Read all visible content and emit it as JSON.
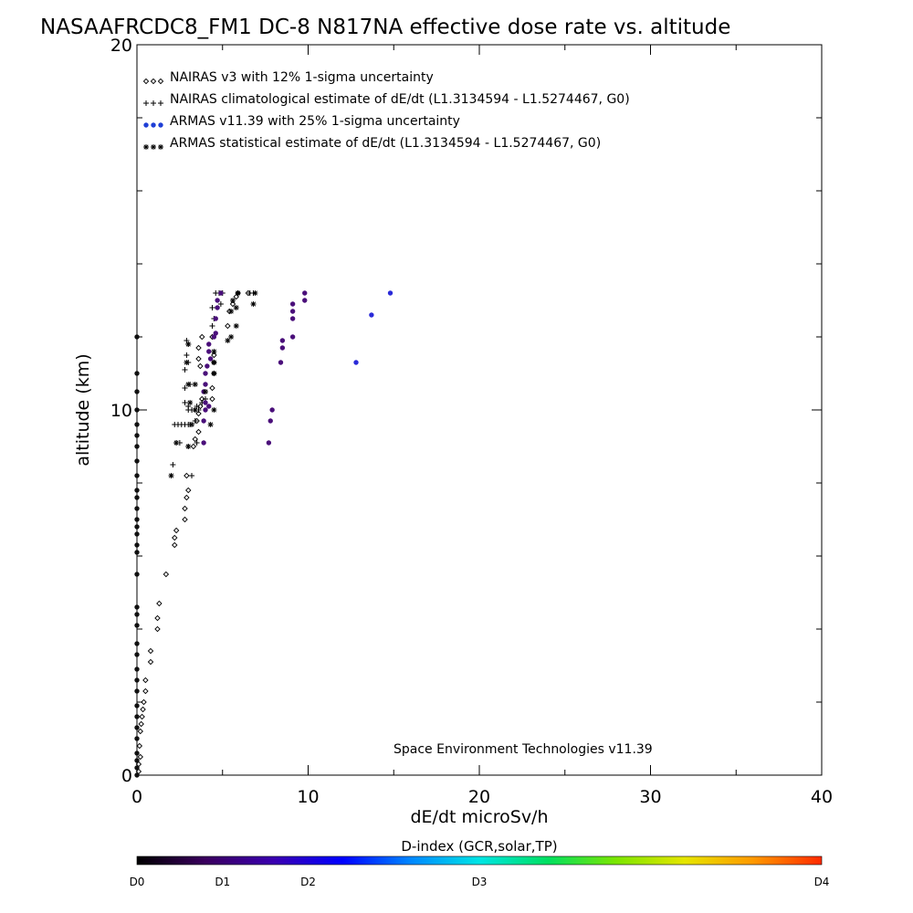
{
  "chart_data": {
    "type": "scatter",
    "title": "NASAAFRCDC8_FM1 DC-8   N817NA effective dose rate vs. altitude",
    "xlabel": "dE/dt microSv/h",
    "ylabel": "altitude (km)",
    "xlim": [
      0,
      40
    ],
    "ylim": [
      0,
      20
    ],
    "xticks": [
      0,
      10,
      20,
      30,
      40
    ],
    "yticks": [
      0,
      10,
      20
    ],
    "x_tick_labels": [
      "0",
      "10",
      "20",
      "30",
      "40"
    ],
    "y_tick_labels": [
      "0",
      "10",
      "20"
    ],
    "grid": false,
    "legend_position": "top-left",
    "annotation": "Space Environment Technologies v11.39",
    "series": [
      {
        "name": "NAIRAS v3 with 12% 1-sigma uncertainty",
        "marker": "diamond",
        "color": "#000000",
        "points": [
          [
            0.1,
            0.1
          ],
          [
            0.1,
            0.3
          ],
          [
            0.2,
            0.5
          ],
          [
            0.15,
            0.8
          ],
          [
            0.2,
            1.2
          ],
          [
            0.25,
            1.4
          ],
          [
            0.3,
            1.6
          ],
          [
            0.35,
            1.8
          ],
          [
            0.4,
            2.0
          ],
          [
            0.5,
            2.3
          ],
          [
            0.5,
            2.6
          ],
          [
            0.8,
            3.1
          ],
          [
            0.8,
            3.4
          ],
          [
            1.2,
            4.0
          ],
          [
            1.2,
            4.3
          ],
          [
            1.3,
            4.7
          ],
          [
            1.7,
            5.5
          ],
          [
            2.2,
            6.3
          ],
          [
            2.2,
            6.5
          ],
          [
            2.3,
            6.7
          ],
          [
            2.8,
            7.0
          ],
          [
            2.8,
            7.3
          ],
          [
            2.9,
            7.6
          ],
          [
            3.0,
            7.8
          ],
          [
            2.9,
            8.2
          ],
          [
            3.3,
            9.0
          ],
          [
            3.4,
            9.2
          ],
          [
            3.6,
            9.4
          ],
          [
            3.5,
            9.7
          ],
          [
            3.6,
            9.9
          ],
          [
            3.7,
            10.1
          ],
          [
            3.8,
            10.3
          ],
          [
            4.4,
            10.3
          ],
          [
            4.4,
            10.6
          ],
          [
            4.5,
            11.0
          ],
          [
            4.5,
            11.3
          ],
          [
            4.5,
            11.5
          ],
          [
            3.6,
            11.7
          ],
          [
            3.8,
            12.0
          ],
          [
            3.7,
            11.2
          ],
          [
            3.6,
            11.4
          ],
          [
            4.4,
            12.0
          ],
          [
            5.3,
            12.3
          ],
          [
            5.4,
            12.7
          ],
          [
            5.6,
            12.9
          ],
          [
            5.8,
            13.1
          ],
          [
            5.9,
            13.2
          ],
          [
            6.5,
            13.2
          ]
        ]
      },
      {
        "name": "NAIRAS climatological estimate of dE/dt (L1.3134594 - L1.5274467, G0)",
        "marker": "plus",
        "color": "#000000",
        "points": [
          [
            2.0,
            8.2
          ],
          [
            2.1,
            8.5
          ],
          [
            2.3,
            9.1
          ],
          [
            2.5,
            9.1
          ],
          [
            3.2,
            8.2
          ],
          [
            3.0,
            9.0
          ],
          [
            3.5,
            9.1
          ],
          [
            3.2,
            9.6
          ],
          [
            3.4,
            9.7
          ],
          [
            3.0,
            10.0
          ],
          [
            3.2,
            10.0
          ],
          [
            3.4,
            10.0
          ],
          [
            3.6,
            10.0
          ],
          [
            2.8,
            10.2
          ],
          [
            3.0,
            10.1
          ],
          [
            3.5,
            10.1
          ],
          [
            3.8,
            10.2
          ],
          [
            4.0,
            10.3
          ],
          [
            2.8,
            10.6
          ],
          [
            3.1,
            10.7
          ],
          [
            2.8,
            11.1
          ],
          [
            3.0,
            11.3
          ],
          [
            2.9,
            11.5
          ],
          [
            3.0,
            11.8
          ],
          [
            2.9,
            11.9
          ],
          [
            4.4,
            12.3
          ],
          [
            4.5,
            12.5
          ],
          [
            4.4,
            12.8
          ],
          [
            4.9,
            12.9
          ],
          [
            4.6,
            13.2
          ],
          [
            4.8,
            13.2
          ],
          [
            5.0,
            13.2
          ],
          [
            6.6,
            13.2
          ],
          [
            6.8,
            13.2
          ],
          [
            2.2,
            9.6
          ],
          [
            2.4,
            9.6
          ],
          [
            2.6,
            9.6
          ],
          [
            2.8,
            9.6
          ],
          [
            3.0,
            9.6
          ],
          [
            3.1,
            9.6
          ]
        ]
      },
      {
        "name": "ARMAS v11.39 with 25% 1-sigma uncertainty",
        "marker": "circle",
        "color": "#1f3fd6",
        "points": [
          [
            0.0,
            0.0
          ],
          [
            0.0,
            0.2
          ],
          [
            0.0,
            0.4
          ],
          [
            0.0,
            0.6
          ],
          [
            0.0,
            1.0
          ],
          [
            0.0,
            1.3
          ],
          [
            0.0,
            1.6
          ],
          [
            0.0,
            1.9
          ],
          [
            0.0,
            2.3
          ],
          [
            0.0,
            2.6
          ],
          [
            0.0,
            2.9
          ],
          [
            0.0,
            3.3
          ],
          [
            0.0,
            3.6
          ],
          [
            0.0,
            4.1
          ],
          [
            0.0,
            4.4
          ],
          [
            0.0,
            4.6
          ],
          [
            0.0,
            5.5
          ],
          [
            0.0,
            6.1
          ],
          [
            0.0,
            6.3
          ],
          [
            0.0,
            6.6
          ],
          [
            0.0,
            6.8
          ],
          [
            0.0,
            7.0
          ],
          [
            0.0,
            7.3
          ],
          [
            0.0,
            7.6
          ],
          [
            0.0,
            7.8
          ],
          [
            0.0,
            8.2
          ],
          [
            0.0,
            8.6
          ],
          [
            0.0,
            9.0
          ],
          [
            0.0,
            9.3
          ],
          [
            0.0,
            9.6
          ],
          [
            0.0,
            10.0
          ],
          [
            0.0,
            10.5
          ],
          [
            0.0,
            11.0
          ],
          [
            0.0,
            12.0
          ],
          [
            3.9,
            9.1
          ],
          [
            3.9,
            9.7
          ],
          [
            4.0,
            10.0
          ],
          [
            4.0,
            10.2
          ],
          [
            3.9,
            10.5
          ],
          [
            4.0,
            10.7
          ],
          [
            4.0,
            11.0
          ],
          [
            4.1,
            11.2
          ],
          [
            4.2,
            11.6
          ],
          [
            4.2,
            11.8
          ],
          [
            4.5,
            12.0
          ],
          [
            4.6,
            12.1
          ],
          [
            4.6,
            12.5
          ],
          [
            4.7,
            12.8
          ],
          [
            4.7,
            13.0
          ],
          [
            4.9,
            13.2
          ],
          [
            4.2,
            10.1
          ],
          [
            4.3,
            11.4
          ],
          [
            7.7,
            9.1
          ],
          [
            7.8,
            9.7
          ],
          [
            7.9,
            10.0
          ],
          [
            8.4,
            11.3
          ],
          [
            8.5,
            11.7
          ],
          [
            8.5,
            11.9
          ],
          [
            9.1,
            12.0
          ],
          [
            9.1,
            12.5
          ],
          [
            9.1,
            12.7
          ],
          [
            9.1,
            12.9
          ],
          [
            9.8,
            13.0
          ],
          [
            9.8,
            13.2
          ],
          [
            12.8,
            11.3
          ],
          [
            13.7,
            12.6
          ],
          [
            14.8,
            13.2
          ]
        ]
      },
      {
        "name": "ARMAS statistical estimate of dE/dt (L1.3134594 - L1.5274467, G0)",
        "marker": "star",
        "color": "#000000",
        "points": [
          [
            2.0,
            8.2
          ],
          [
            2.3,
            9.1
          ],
          [
            3.0,
            9.0
          ],
          [
            3.2,
            9.6
          ],
          [
            3.4,
            10.0
          ],
          [
            4.3,
            9.6
          ],
          [
            4.5,
            10.0
          ],
          [
            3.0,
            10.7
          ],
          [
            3.4,
            10.7
          ],
          [
            4.0,
            10.5
          ],
          [
            4.5,
            11.0
          ],
          [
            4.5,
            11.3
          ],
          [
            4.5,
            11.6
          ],
          [
            2.9,
            11.3
          ],
          [
            3.0,
            11.8
          ],
          [
            5.3,
            11.9
          ],
          [
            5.5,
            12.0
          ],
          [
            5.8,
            12.3
          ],
          [
            5.5,
            12.7
          ],
          [
            5.8,
            12.8
          ],
          [
            5.6,
            13.0
          ],
          [
            5.9,
            13.2
          ],
          [
            6.9,
            13.2
          ],
          [
            6.8,
            12.9
          ],
          [
            3.1,
            10.2
          ]
        ]
      }
    ],
    "colorbar": {
      "title": "D-index (GCR,solar,TP)",
      "labels": [
        {
          "text": "D0",
          "pos": 0.0
        },
        {
          "text": "D1",
          "pos": 0.125
        },
        {
          "text": "D2",
          "pos": 0.25
        },
        {
          "text": "D3",
          "pos": 0.5
        },
        {
          "text": "D4",
          "pos": 1.0
        }
      ],
      "colors": [
        "#000000",
        "#3a005e",
        "#3a00b0",
        "#0000ff",
        "#0088ff",
        "#00e5e5",
        "#00e060",
        "#7ce600",
        "#e6e600",
        "#ff9900",
        "#ff2a00"
      ]
    }
  }
}
